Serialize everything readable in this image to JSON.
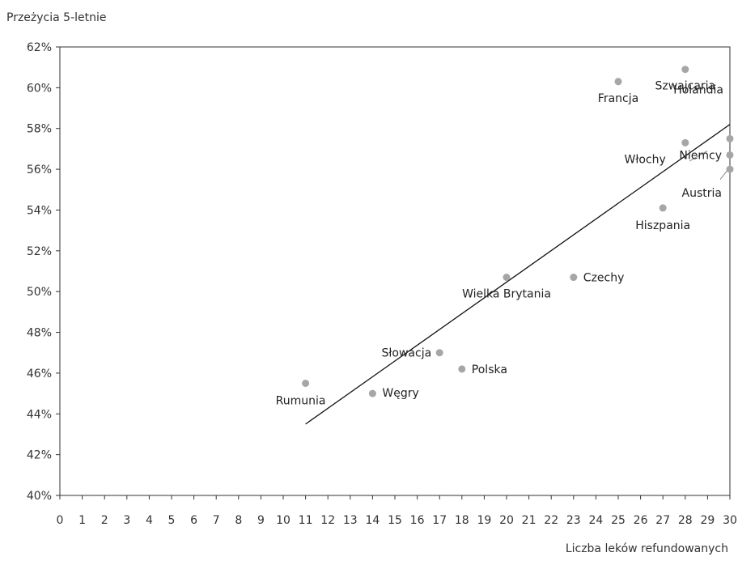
{
  "chart_data": {
    "type": "scatter",
    "ylabel": "Przeżycia 5-letnie",
    "xlabel": "Liczba leków refundowanych",
    "xlim": [
      0,
      30
    ],
    "ylim": [
      40,
      62
    ],
    "x_ticks": [
      "0",
      "1",
      "2",
      "3",
      "4",
      "5",
      "6",
      "7",
      "8",
      "9",
      "10",
      "11",
      "12",
      "13",
      "14",
      "15",
      "16",
      "17",
      "18",
      "19",
      "20",
      "21",
      "22",
      "23",
      "24",
      "25",
      "26",
      "27",
      "28",
      "29",
      "30"
    ],
    "y_ticks": [
      "40%",
      "42%",
      "44%",
      "46%",
      "48%",
      "50%",
      "52%",
      "54%",
      "56%",
      "58%",
      "60%",
      "62%"
    ],
    "grid": false,
    "points": [
      {
        "label": "Rumunia",
        "x": 11,
        "y": 45.5
      },
      {
        "label": "Węgry",
        "x": 14,
        "y": 45.0
      },
      {
        "label": "Słowacja",
        "x": 17,
        "y": 47.0
      },
      {
        "label": "Polska",
        "x": 18,
        "y": 46.2
      },
      {
        "label": "Wielka Brytania",
        "x": 20,
        "y": 50.7
      },
      {
        "label": "Czechy",
        "x": 23,
        "y": 50.7
      },
      {
        "label": "Francja",
        "x": 25,
        "y": 60.3
      },
      {
        "label": "Hiszpania",
        "x": 27,
        "y": 54.1
      },
      {
        "label": "Szwajcaria",
        "x": 28,
        "y": 60.9
      },
      {
        "label": "Włochy",
        "x": 28,
        "y": 57.3
      },
      {
        "label": "Holandia",
        "x": 30,
        "y": 57.5
      },
      {
        "label": "Niemcy",
        "x": 30,
        "y": 56.7
      },
      {
        "label": "Austria",
        "x": 30,
        "y": 56.0
      }
    ],
    "trendline": {
      "x": [
        11,
        30
      ],
      "y": [
        43.5,
        58.2
      ]
    },
    "colors": {
      "point": "#a6a6a6",
      "line": "#111111",
      "axis": "#333333"
    }
  }
}
